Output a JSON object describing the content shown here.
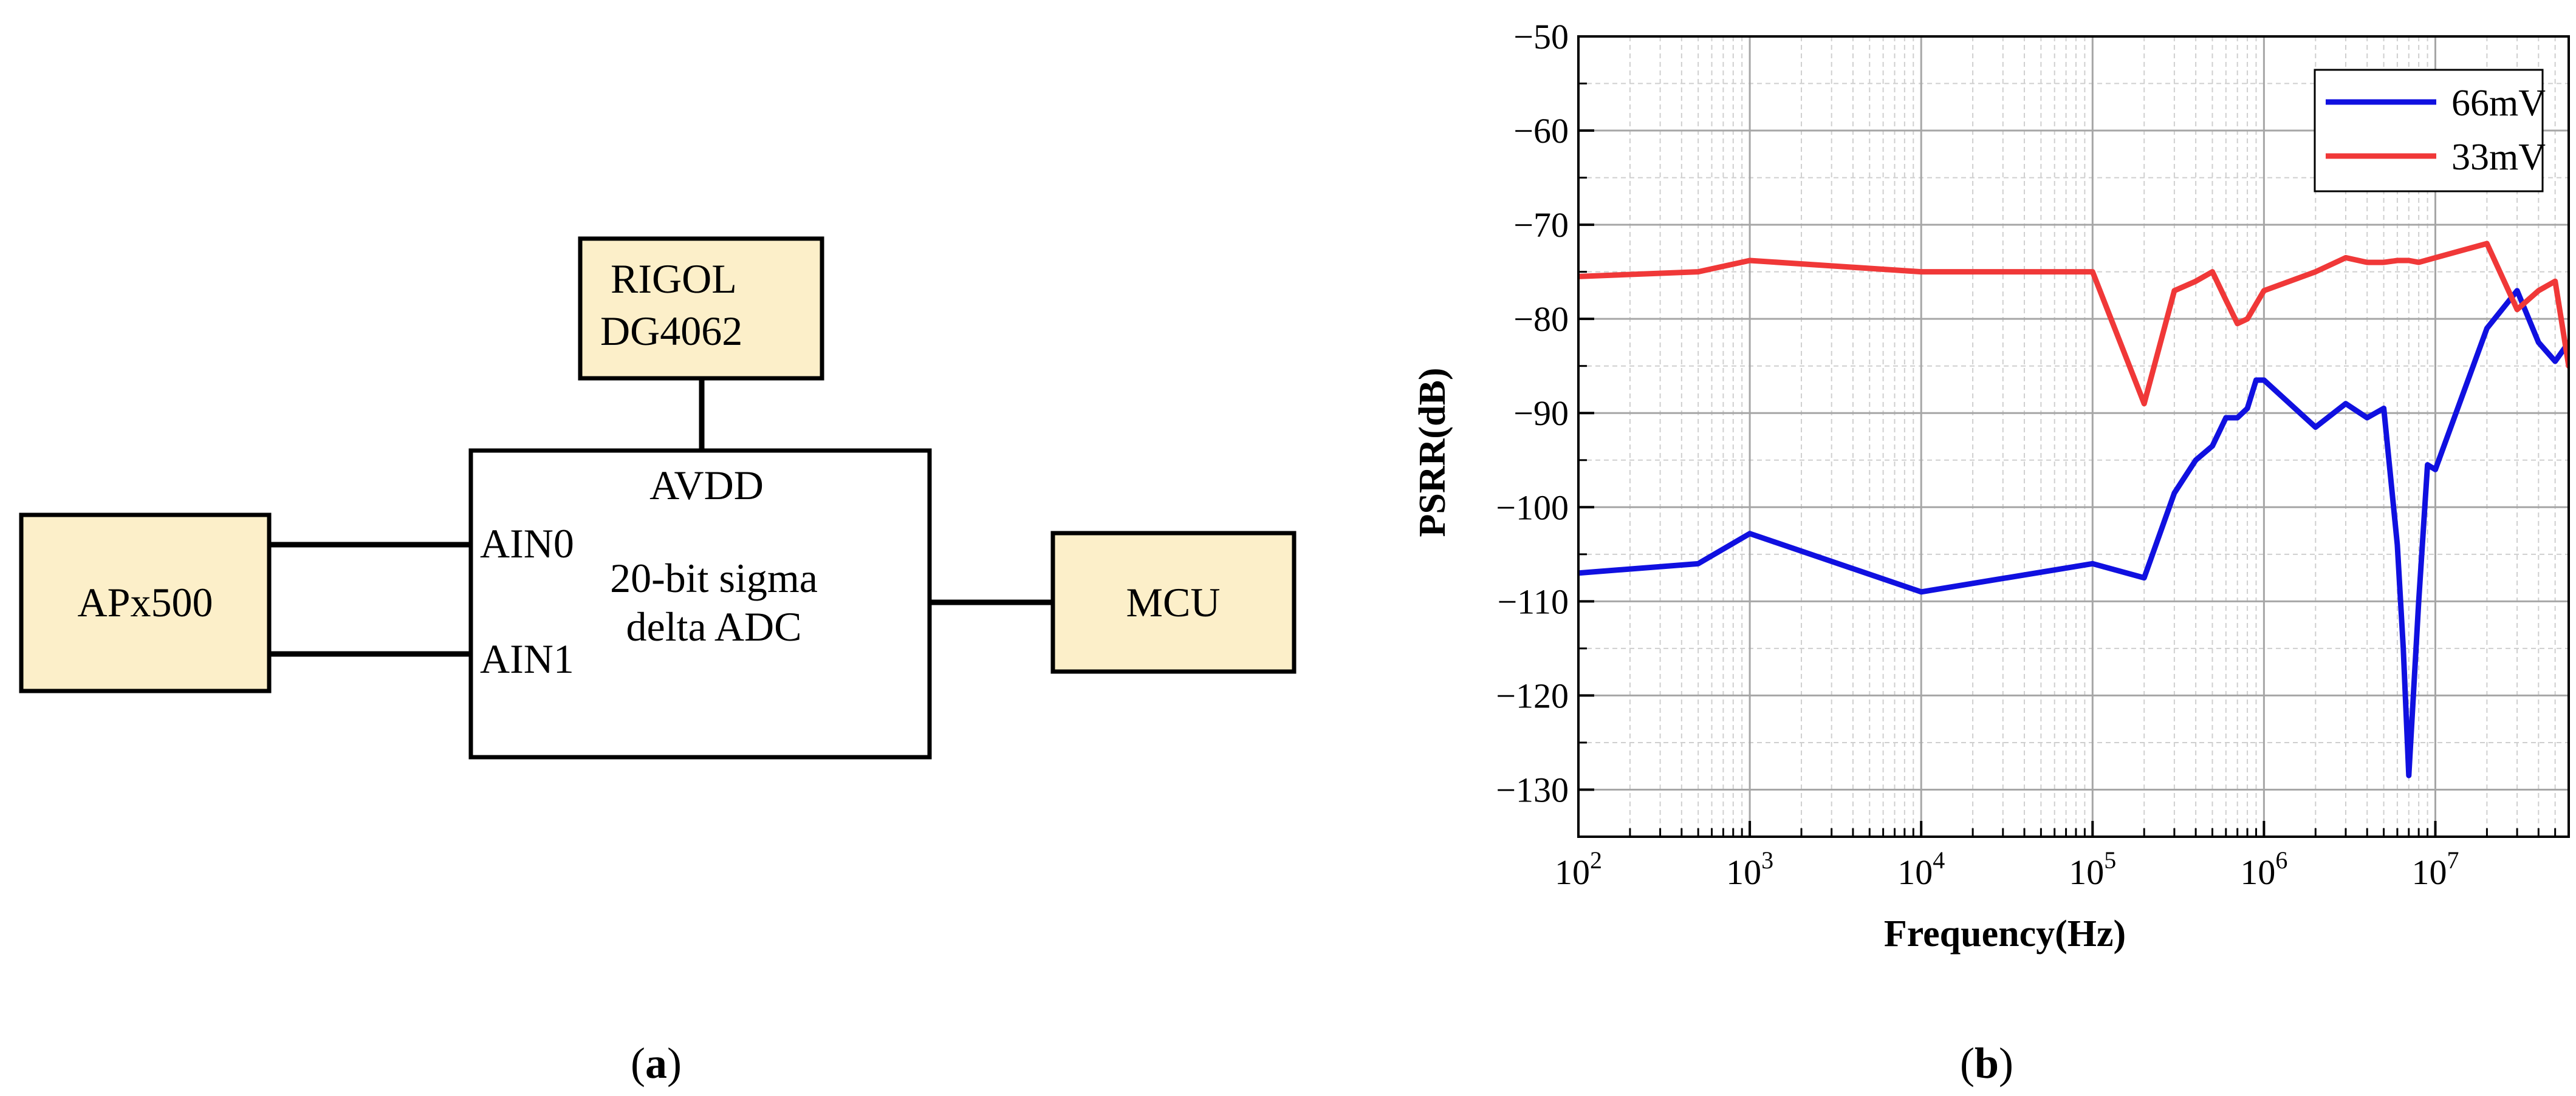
{
  "diagram": {
    "panel_label": "a",
    "blocks": {
      "generator": {
        "line1": "RIGOL",
        "line2": "DG4062"
      },
      "analyzer": {
        "label": "APx500"
      },
      "adc": {
        "supply": "AVDD",
        "in0": "AIN0",
        "in1": "AIN1",
        "line1": "20-bit sigma",
        "line2": "delta ADC"
      },
      "mcu": {
        "label": "MCU"
      }
    },
    "colors": {
      "block_fill": "#fcefc9",
      "adc_fill": "#ffffff",
      "stroke": "#000000"
    }
  },
  "chart_data": {
    "panel_label": "b",
    "type": "line",
    "title": "",
    "xlabel": "Frequency(Hz)",
    "ylabel": "PSRR(dB)",
    "xscale": "log",
    "xlim": [
      100,
      60000000
    ],
    "ylim": [
      -135,
      -50
    ],
    "x_ticks": [
      {
        "base": "10",
        "exp": "2",
        "value": 100
      },
      {
        "base": "10",
        "exp": "3",
        "value": 1000
      },
      {
        "base": "10",
        "exp": "4",
        "value": 10000
      },
      {
        "base": "10",
        "exp": "5",
        "value": 100000
      },
      {
        "base": "10",
        "exp": "6",
        "value": 1000000
      },
      {
        "base": "10",
        "exp": "7",
        "value": 10000000
      }
    ],
    "y_ticks": [
      {
        "value": -50,
        "label": "−50"
      },
      {
        "value": -60,
        "label": "−60"
      },
      {
        "value": -70,
        "label": "−70"
      },
      {
        "value": -80,
        "label": "−80"
      },
      {
        "value": -90,
        "label": "−90"
      },
      {
        "value": -100,
        "label": "−100"
      },
      {
        "value": -110,
        "label": "−110"
      },
      {
        "value": -120,
        "label": "−120"
      },
      {
        "value": -130,
        "label": "−130"
      }
    ],
    "grid": true,
    "legend_position": "top-right",
    "series": [
      {
        "name": "66mV",
        "color": "#1010e0",
        "x": [
          100,
          500,
          1000,
          10000,
          100000,
          200000,
          300000,
          400000,
          500000,
          600000,
          700000,
          800000,
          900000,
          1000000,
          2000000,
          3000000,
          4000000,
          5000000,
          6000000,
          6500000,
          7000000,
          8000000,
          9000000,
          10000000,
          20000000,
          30000000,
          40000000,
          50000000,
          60000000
        ],
        "y": [
          -107,
          -106,
          -102.8,
          -109,
          -106,
          -107.5,
          -98.5,
          -95,
          -93.5,
          -90.5,
          -90.5,
          -89.5,
          -86.5,
          -86.5,
          -91.5,
          -89,
          -90.5,
          -89.5,
          -104,
          -115,
          -128.5,
          -110,
          -95.5,
          -96,
          -81,
          -77,
          -82.5,
          -84.5,
          -82.5
        ]
      },
      {
        "name": "33mV",
        "color": "#f03838",
        "x": [
          100,
          500,
          1000,
          10000,
          100000,
          200000,
          300000,
          400000,
          500000,
          600000,
          700000,
          800000,
          1000000,
          2000000,
          3000000,
          4000000,
          5000000,
          6000000,
          7000000,
          8000000,
          10000000,
          20000000,
          30000000,
          40000000,
          50000000,
          60000000
        ],
        "y": [
          -75.5,
          -75,
          -73.8,
          -75,
          -75,
          -89,
          -77,
          -76,
          -75,
          -78,
          -80.5,
          -80,
          -77,
          -75,
          -73.5,
          -74,
          -74,
          -73.8,
          -73.8,
          -74,
          -73.5,
          -72,
          -79,
          -77,
          -76,
          -85
        ]
      }
    ]
  }
}
